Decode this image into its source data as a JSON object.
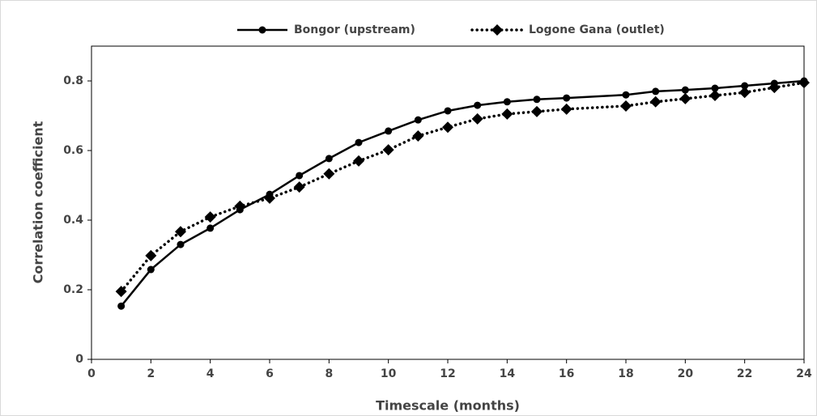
{
  "chart_data": {
    "type": "line",
    "x_label": "Timescale  (months)",
    "y_label": "Correlation coefficient",
    "x": [
      1,
      2,
      3,
      4,
      5,
      6,
      7,
      8,
      9,
      10,
      11,
      12,
      13,
      14,
      15,
      16,
      18,
      19,
      20,
      21,
      22,
      23,
      24
    ],
    "series": [
      {
        "name": "Bongor (upstream)",
        "color": "#000000",
        "marker": "circle",
        "dash": "solid",
        "values": [
          0.153,
          0.258,
          0.33,
          0.377,
          0.43,
          0.474,
          0.528,
          0.577,
          0.623,
          0.656,
          0.688,
          0.714,
          0.73,
          0.74,
          0.747,
          0.751,
          0.76,
          0.77,
          0.774,
          0.779,
          0.786,
          0.793,
          0.8
        ]
      },
      {
        "name": "Logone Gana (outlet)",
        "color": "#000000",
        "marker": "diamond",
        "dash": "dotted",
        "values": [
          0.195,
          0.298,
          0.367,
          0.409,
          0.44,
          0.463,
          0.495,
          0.533,
          0.57,
          0.602,
          0.642,
          0.667,
          0.691,
          0.705,
          0.712,
          0.719,
          0.728,
          0.74,
          0.749,
          0.758,
          0.767,
          0.781,
          0.795
        ]
      }
    ],
    "xlim": [
      0,
      24
    ],
    "xticks": [
      0,
      2,
      4,
      6,
      8,
      10,
      12,
      14,
      16,
      18,
      20,
      22,
      24
    ],
    "ylim": [
      0,
      0.9
    ],
    "yticks": [
      0,
      0.2,
      0.4,
      0.6,
      0.8
    ],
    "legend": "top"
  }
}
